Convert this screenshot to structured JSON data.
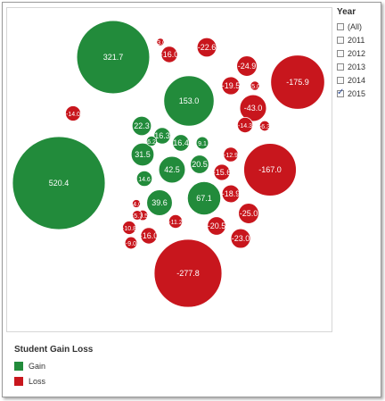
{
  "filter": {
    "title": "Year",
    "options": [
      {
        "label": "(All)",
        "checked": false
      },
      {
        "label": "2011",
        "checked": false
      },
      {
        "label": "2012",
        "checked": false
      },
      {
        "label": "2013",
        "checked": false
      },
      {
        "label": "2014",
        "checked": false
      },
      {
        "label": "2015",
        "checked": true
      }
    ]
  },
  "legend": {
    "title": "Student Gain Loss",
    "items": [
      {
        "label": "Gain",
        "color": "#228b3b"
      },
      {
        "label": "Loss",
        "color": "#c8161d"
      }
    ]
  },
  "chart_data": {
    "type": "packed-bubble",
    "colors": {
      "Gain": "#228b3b",
      "Loss": "#c8161d"
    },
    "values": [
      {
        "value": 520.4,
        "category": "Gain"
      },
      {
        "value": 321.7,
        "category": "Gain"
      },
      {
        "value": 153.0,
        "category": "Gain"
      },
      {
        "value": 67.1,
        "category": "Gain"
      },
      {
        "value": 42.5,
        "category": "Gain"
      },
      {
        "value": 39.6,
        "category": "Gain"
      },
      {
        "value": 31.5,
        "category": "Gain"
      },
      {
        "value": 22.3,
        "category": "Gain"
      },
      {
        "value": 20.5,
        "category": "Gain"
      },
      {
        "value": 16.4,
        "category": "Gain"
      },
      {
        "value": 16.3,
        "category": "Gain"
      },
      {
        "value": 14.6,
        "category": "Gain"
      },
      {
        "value": 9.1,
        "category": "Gain"
      },
      {
        "value": 6.2,
        "category": "Gain"
      },
      {
        "value": -277.8,
        "category": "Loss"
      },
      {
        "value": -175.9,
        "category": "Loss"
      },
      {
        "value": -167.0,
        "category": "Loss"
      },
      {
        "value": -43.0,
        "category": "Loss"
      },
      {
        "value": -25.0,
        "category": "Loss"
      },
      {
        "value": -24.9,
        "category": "Loss"
      },
      {
        "value": -23.0,
        "category": "Loss"
      },
      {
        "value": -22.6,
        "category": "Loss"
      },
      {
        "value": -20.5,
        "category": "Loss"
      },
      {
        "value": -19.5,
        "category": "Loss"
      },
      {
        "value": -18.9,
        "category": "Loss"
      },
      {
        "value": -16.0,
        "category": "Loss"
      },
      {
        "value": -16.0,
        "category": "Loss"
      },
      {
        "value": -15.6,
        "category": "Loss"
      },
      {
        "value": -14.3,
        "category": "Loss"
      },
      {
        "value": -14.0,
        "category": "Loss"
      },
      {
        "value": -12.9,
        "category": "Loss"
      },
      {
        "value": -11.2,
        "category": "Loss"
      },
      {
        "value": -10.8,
        "category": "Loss"
      },
      {
        "value": -9.0,
        "category": "Loss"
      },
      {
        "value": -6.5,
        "category": "Loss"
      },
      {
        "value": -6.3,
        "category": "Loss"
      },
      {
        "value": -5.7,
        "category": "Loss"
      },
      {
        "value": -5.0,
        "category": "Loss"
      },
      {
        "value": -4.0,
        "category": "Loss"
      },
      {
        "value": -3.0,
        "category": "Loss"
      }
    ]
  }
}
